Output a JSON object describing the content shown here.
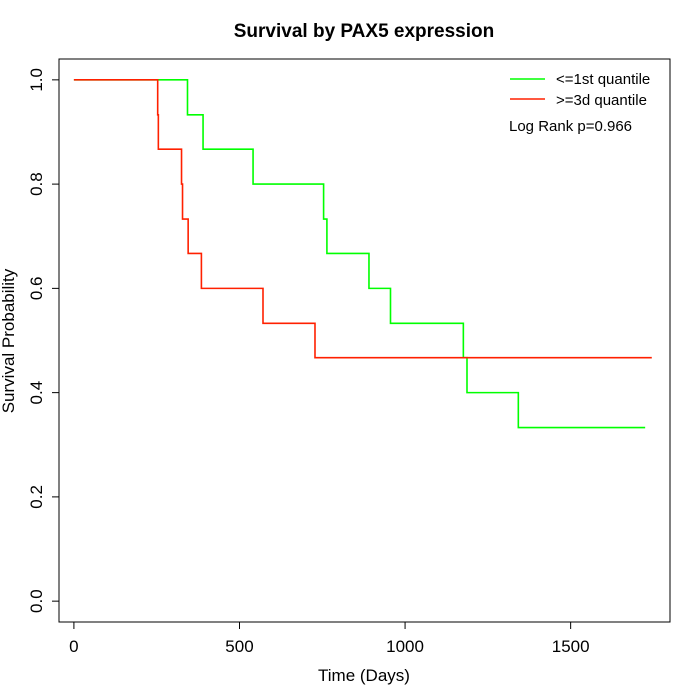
{
  "chart_data": {
    "type": "line",
    "title": "Survival by PAX5 expression",
    "xlabel": "Time (Days)",
    "ylabel": "Survival Probability",
    "xlim": [
      -45,
      1800
    ],
    "ylim": [
      -0.04,
      1.04
    ],
    "x_ticks": [
      0,
      500,
      1000,
      1500
    ],
    "y_ticks": [
      0.0,
      0.2,
      0.4,
      0.6,
      0.8,
      1.0
    ],
    "x_tick_labels": [
      "0",
      "500",
      "1000",
      "1500"
    ],
    "y_tick_labels": [
      "0.0",
      "0.2",
      "0.4",
      "0.6",
      "0.8",
      "1.0"
    ],
    "grid": false,
    "legend_position": "top-right",
    "annotation": "Log Rank p=0.966",
    "series": [
      {
        "name": "<=1st quantile",
        "color": "#00ff00",
        "step_x": [
          0,
          343,
          390,
          541,
          754,
          764,
          891,
          956,
          1176,
          1187,
          1342,
          1725
        ],
        "step_y": [
          1.0,
          0.933,
          0.867,
          0.8,
          0.733,
          0.667,
          0.6,
          0.533,
          0.467,
          0.4,
          0.333,
          0.333
        ]
      },
      {
        "name": ">=3d quantile",
        "color": "#ff2000",
        "step_x": [
          0,
          253,
          255,
          325,
          328,
          345,
          385,
          571,
          728,
          1745
        ],
        "step_y": [
          1.0,
          0.933,
          0.867,
          0.8,
          0.733,
          0.667,
          0.6,
          0.533,
          0.467,
          0.467
        ]
      }
    ]
  }
}
